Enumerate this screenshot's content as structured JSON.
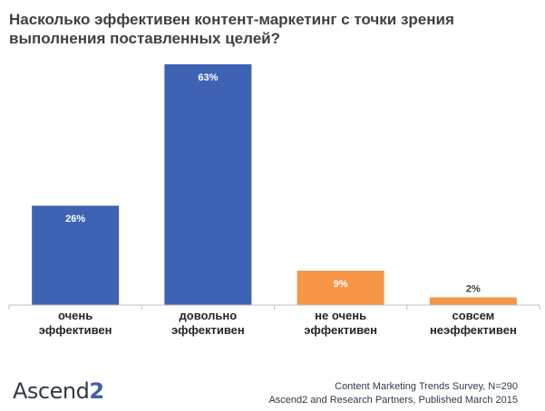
{
  "chart_data": {
    "type": "bar",
    "title": "Насколько эффективен контент-маркетинг с точки зрения выполнения поставленных целей?",
    "categories": [
      [
        "очень",
        "эффективен"
      ],
      [
        "довольно",
        "эффективен"
      ],
      [
        "не очень",
        "эффективен"
      ],
      [
        "совсем",
        "неэффективен"
      ]
    ],
    "values": [
      26,
      63,
      9,
      2
    ],
    "value_labels": [
      "26%",
      "63%",
      "9%",
      "2%"
    ],
    "colors": [
      "#3f63b4",
      "#3f63b4",
      "#f79646",
      "#f79646"
    ],
    "ylim": [
      0,
      63
    ]
  },
  "footer": {
    "logo": "Ascend2",
    "source_line1": "Content Marketing Trends Survey, N=290",
    "source_line2": "Ascend2 and Research Partners, Published March 2015"
  }
}
